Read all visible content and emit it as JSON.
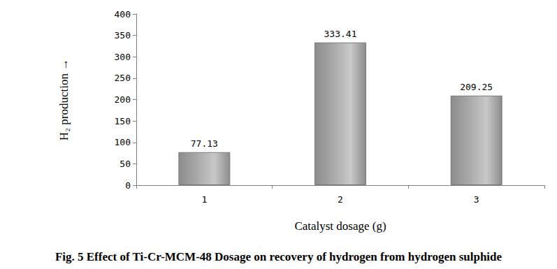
{
  "chart_data": {
    "type": "bar",
    "title": "Fig. 5 Effect of Ti-Cr-MCM-48 Dosage on recovery of hydrogen from hydrogen sulphide",
    "x_label": "Catalyst dosage (g)",
    "y_label": "H₂ production →",
    "categories": [
      "1",
      "2",
      "3"
    ],
    "values": [
      77.13,
      333.41,
      209.25
    ],
    "color": "#a8a8a8",
    "ylim": [
      0,
      400
    ],
    "yticks": [
      0,
      50,
      100,
      150,
      200,
      250,
      300,
      350,
      400
    ],
    "grid": false,
    "data_labels": true
  }
}
